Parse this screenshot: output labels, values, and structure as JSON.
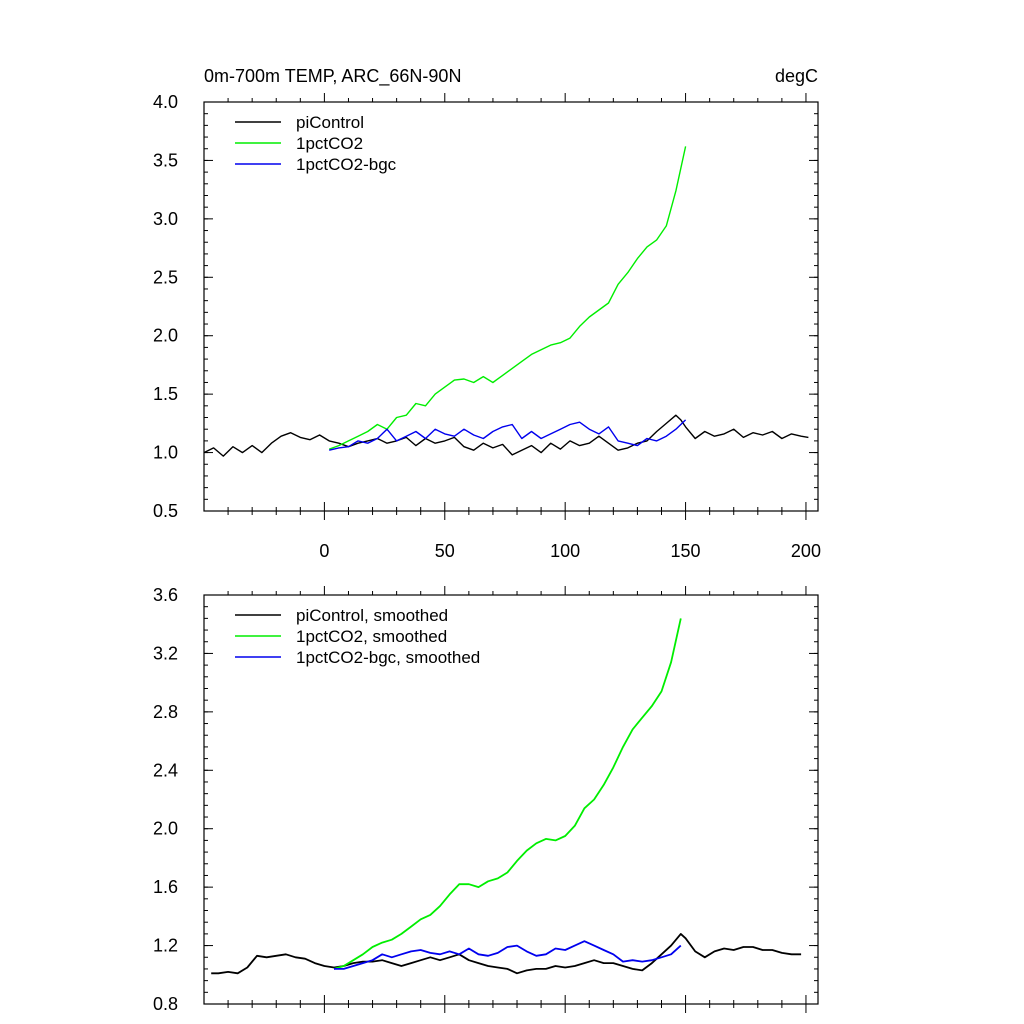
{
  "chart_data": [
    {
      "type": "line",
      "title": "0m-700m TEMP, ARC_66N-90N",
      "units_label": "degC",
      "xlim": [
        -50,
        205
      ],
      "ylim": [
        0.5,
        4.0
      ],
      "x_ticks": [
        0,
        50,
        100,
        150,
        200
      ],
      "y_ticks": [
        0.5,
        1.0,
        1.5,
        2.0,
        2.5,
        3.0,
        3.5,
        4.0
      ],
      "y_tick_labels": [
        "0.5",
        "1.0",
        "1.5",
        "2.0",
        "2.5",
        "3.0",
        "3.5",
        "4.0"
      ],
      "legend_position": "top-left",
      "series": [
        {
          "name": "piControl",
          "color": "#000000",
          "x": [
            -50,
            -46,
            -42,
            -38,
            -34,
            -30,
            -26,
            -22,
            -18,
            -14,
            -10,
            -6,
            -2,
            2,
            6,
            10,
            14,
            18,
            22,
            26,
            30,
            34,
            38,
            42,
            46,
            50,
            54,
            58,
            62,
            66,
            70,
            74,
            78,
            82,
            86,
            90,
            94,
            98,
            102,
            106,
            110,
            114,
            118,
            122,
            126,
            130,
            134,
            138,
            142,
            146,
            148,
            150,
            154,
            158,
            162,
            166,
            170,
            174,
            178,
            182,
            186,
            190,
            194,
            198,
            201
          ],
          "y": [
            1.0,
            1.04,
            0.97,
            1.05,
            1.0,
            1.06,
            1.0,
            1.08,
            1.14,
            1.17,
            1.13,
            1.11,
            1.15,
            1.1,
            1.08,
            1.05,
            1.08,
            1.1,
            1.12,
            1.08,
            1.1,
            1.13,
            1.06,
            1.12,
            1.08,
            1.1,
            1.13,
            1.05,
            1.02,
            1.08,
            1.04,
            1.07,
            0.98,
            1.02,
            1.06,
            1.0,
            1.08,
            1.03,
            1.1,
            1.06,
            1.08,
            1.14,
            1.08,
            1.02,
            1.04,
            1.08,
            1.1,
            1.18,
            1.25,
            1.32,
            1.28,
            1.22,
            1.12,
            1.18,
            1.14,
            1.16,
            1.2,
            1.13,
            1.17,
            1.15,
            1.18,
            1.12,
            1.16,
            1.14,
            1.13
          ]
        },
        {
          "name": "1pctCO2",
          "color": "#00ee00",
          "x": [
            2,
            6,
            10,
            14,
            18,
            22,
            26,
            30,
            34,
            38,
            42,
            46,
            50,
            54,
            58,
            62,
            66,
            70,
            74,
            78,
            82,
            86,
            90,
            94,
            98,
            102,
            106,
            110,
            114,
            118,
            122,
            126,
            130,
            134,
            138,
            142,
            146,
            150
          ],
          "y": [
            1.03,
            1.06,
            1.1,
            1.14,
            1.18,
            1.24,
            1.2,
            1.3,
            1.32,
            1.42,
            1.4,
            1.5,
            1.56,
            1.62,
            1.63,
            1.6,
            1.65,
            1.6,
            1.66,
            1.72,
            1.78,
            1.84,
            1.88,
            1.92,
            1.94,
            1.98,
            2.08,
            2.16,
            2.22,
            2.28,
            2.44,
            2.54,
            2.66,
            2.76,
            2.82,
            2.94,
            3.24,
            3.62
          ]
        },
        {
          "name": "1pctCO2-bgc",
          "color": "#0000ee",
          "x": [
            2,
            6,
            10,
            14,
            18,
            22,
            26,
            30,
            34,
            38,
            42,
            46,
            50,
            54,
            58,
            62,
            66,
            70,
            74,
            78,
            82,
            86,
            90,
            94,
            98,
            102,
            106,
            110,
            114,
            118,
            122,
            126,
            130,
            134,
            138,
            142,
            146,
            150
          ],
          "y": [
            1.02,
            1.04,
            1.05,
            1.1,
            1.08,
            1.12,
            1.2,
            1.1,
            1.14,
            1.18,
            1.12,
            1.2,
            1.16,
            1.14,
            1.2,
            1.15,
            1.12,
            1.18,
            1.22,
            1.24,
            1.12,
            1.18,
            1.12,
            1.16,
            1.2,
            1.24,
            1.26,
            1.2,
            1.16,
            1.22,
            1.1,
            1.08,
            1.06,
            1.12,
            1.1,
            1.14,
            1.2,
            1.28
          ]
        }
      ]
    },
    {
      "type": "line",
      "xlim": [
        -50,
        205
      ],
      "ylim": [
        0.8,
        3.6
      ],
      "x_ticks": [
        0,
        50,
        100,
        150,
        200
      ],
      "y_ticks": [
        0.8,
        1.2,
        1.6,
        2.0,
        2.4,
        2.8,
        3.2,
        3.6
      ],
      "y_tick_labels": [
        "0.8",
        "1.2",
        "1.6",
        "2.0",
        "2.4",
        "2.8",
        "3.2",
        "3.6"
      ],
      "legend_position": "top-left",
      "series": [
        {
          "name": "piControl, smoothed",
          "color": "#000000",
          "x": [
            -47,
            -44,
            -40,
            -36,
            -32,
            -28,
            -24,
            -20,
            -16,
            -12,
            -8,
            -4,
            0,
            4,
            8,
            12,
            16,
            20,
            24,
            28,
            32,
            36,
            40,
            44,
            48,
            52,
            56,
            60,
            64,
            68,
            72,
            76,
            80,
            84,
            88,
            92,
            96,
            100,
            104,
            108,
            112,
            116,
            120,
            124,
            128,
            132,
            136,
            140,
            144,
            148,
            150,
            154,
            158,
            162,
            166,
            170,
            174,
            178,
            182,
            186,
            190,
            194,
            198
          ],
          "y": [
            1.01,
            1.01,
            1.02,
            1.01,
            1.05,
            1.13,
            1.12,
            1.13,
            1.14,
            1.12,
            1.11,
            1.08,
            1.06,
            1.05,
            1.06,
            1.08,
            1.09,
            1.09,
            1.1,
            1.08,
            1.06,
            1.08,
            1.1,
            1.12,
            1.1,
            1.12,
            1.14,
            1.1,
            1.08,
            1.06,
            1.05,
            1.04,
            1.01,
            1.03,
            1.04,
            1.04,
            1.06,
            1.05,
            1.06,
            1.08,
            1.1,
            1.08,
            1.08,
            1.06,
            1.04,
            1.03,
            1.08,
            1.14,
            1.2,
            1.28,
            1.25,
            1.16,
            1.12,
            1.16,
            1.18,
            1.17,
            1.19,
            1.19,
            1.17,
            1.17,
            1.15,
            1.14,
            1.14
          ]
        },
        {
          "name": "1pctCO2, smoothed",
          "color": "#00ee00",
          "x": [
            4,
            8,
            12,
            16,
            20,
            24,
            28,
            32,
            36,
            40,
            44,
            48,
            52,
            56,
            60,
            64,
            68,
            72,
            76,
            80,
            84,
            88,
            92,
            96,
            100,
            104,
            108,
            112,
            116,
            120,
            124,
            128,
            132,
            136,
            140,
            144,
            148
          ],
          "y": [
            1.04,
            1.06,
            1.1,
            1.14,
            1.19,
            1.22,
            1.24,
            1.28,
            1.33,
            1.38,
            1.41,
            1.47,
            1.55,
            1.62,
            1.62,
            1.6,
            1.64,
            1.66,
            1.7,
            1.78,
            1.85,
            1.9,
            1.93,
            1.92,
            1.95,
            2.02,
            2.14,
            2.2,
            2.3,
            2.42,
            2.56,
            2.68,
            2.76,
            2.84,
            2.94,
            3.14,
            3.44
          ]
        },
        {
          "name": "1pctCO2-bgc, smoothed",
          "color": "#0000ee",
          "x": [
            4,
            8,
            12,
            16,
            20,
            24,
            28,
            32,
            36,
            40,
            44,
            48,
            52,
            56,
            60,
            64,
            68,
            72,
            76,
            80,
            84,
            88,
            92,
            96,
            100,
            104,
            108,
            112,
            116,
            120,
            124,
            128,
            132,
            136,
            140,
            144,
            148
          ],
          "y": [
            1.04,
            1.04,
            1.06,
            1.08,
            1.1,
            1.14,
            1.12,
            1.14,
            1.16,
            1.17,
            1.15,
            1.14,
            1.16,
            1.14,
            1.18,
            1.14,
            1.13,
            1.15,
            1.19,
            1.2,
            1.16,
            1.13,
            1.14,
            1.18,
            1.17,
            1.2,
            1.23,
            1.2,
            1.17,
            1.14,
            1.09,
            1.1,
            1.09,
            1.1,
            1.12,
            1.14,
            1.2
          ]
        }
      ]
    }
  ]
}
